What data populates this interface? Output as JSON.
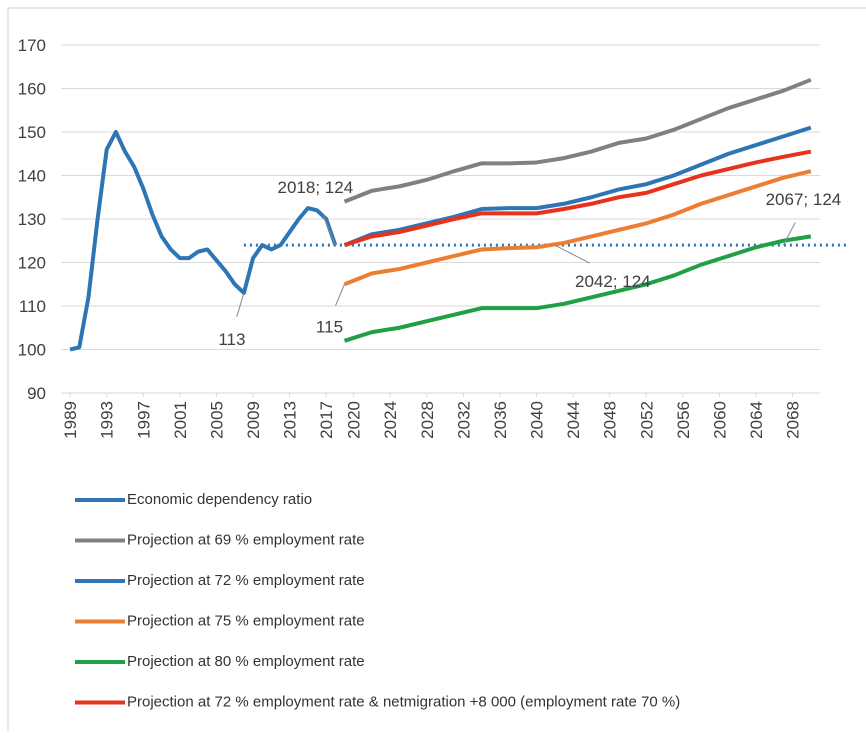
{
  "chart_data": {
    "type": "line",
    "xlim": [
      1988,
      2071
    ],
    "ylim": [
      90,
      170
    ],
    "yticks": [
      90,
      100,
      110,
      120,
      130,
      140,
      150,
      160,
      170
    ],
    "xticks": [
      1989,
      1993,
      1997,
      2001,
      2005,
      2009,
      2013,
      2017,
      2020,
      2024,
      2028,
      2032,
      2036,
      2040,
      2044,
      2048,
      2052,
      2056,
      2060,
      2064,
      2068
    ],
    "grid": true,
    "series": [
      {
        "name": "Economic dependency ratio",
        "color": "#2e75b6",
        "x": [
          1989,
          1990,
          1991,
          1992,
          1993,
          1994,
          1995,
          1996,
          1997,
          1998,
          1999,
          2000,
          2001,
          2002,
          2003,
          2004,
          2005,
          2006,
          2007,
          2008,
          2009,
          2010,
          2011,
          2012,
          2013,
          2014,
          2015,
          2016,
          2017,
          2018
        ],
        "values": [
          100,
          100.5,
          112,
          130,
          146,
          150,
          145.5,
          142,
          137,
          131,
          126,
          123,
          121,
          121,
          122.5,
          123,
          120.5,
          118,
          115,
          113,
          121,
          124,
          123,
          124,
          127,
          130,
          132.5,
          132,
          130,
          124
        ]
      },
      {
        "name": "Projection at 69 % employment rate",
        "color": "#808080",
        "x": [
          2019,
          2022,
          2025,
          2028,
          2031,
          2034,
          2037,
          2040,
          2043,
          2046,
          2049,
          2052,
          2055,
          2058,
          2061,
          2064,
          2067,
          2070
        ],
        "values": [
          134,
          136.5,
          137.5,
          139,
          141,
          142.8,
          142.8,
          143,
          144,
          145.5,
          147.5,
          148.5,
          150.5,
          153,
          155.5,
          157.5,
          159.5,
          162
        ]
      },
      {
        "name": "Projection at 72 % employment rate",
        "color": "#2e75b6",
        "x": [
          2019,
          2022,
          2025,
          2028,
          2031,
          2034,
          2037,
          2040,
          2043,
          2046,
          2049,
          2052,
          2055,
          2058,
          2061,
          2064,
          2067,
          2070
        ],
        "values": [
          124,
          126.5,
          127.5,
          129,
          130.5,
          132.3,
          132.5,
          132.5,
          133.5,
          135,
          136.8,
          138,
          140,
          142.5,
          145,
          147,
          149,
          151
        ]
      },
      {
        "name": "Projection at 75 % employment rate",
        "color": "#ed7d31",
        "x": [
          2019,
          2022,
          2025,
          2028,
          2031,
          2034,
          2037,
          2040,
          2043,
          2046,
          2049,
          2052,
          2055,
          2058,
          2061,
          2064,
          2067,
          2070
        ],
        "values": [
          115,
          117.5,
          118.5,
          120,
          121.5,
          123,
          123.3,
          123.5,
          124.5,
          126,
          127.5,
          129,
          131,
          133.5,
          135.5,
          137.5,
          139.5,
          141
        ]
      },
      {
        "name": "Projection at 80 % employment rate",
        "color": "#1fa045",
        "x": [
          2019,
          2022,
          2025,
          2028,
          2031,
          2034,
          2037,
          2040,
          2043,
          2046,
          2049,
          2052,
          2055,
          2058,
          2061,
          2064,
          2067,
          2070
        ],
        "values": [
          102,
          104,
          105,
          106.5,
          108,
          109.5,
          109.5,
          109.5,
          110.5,
          112,
          113.5,
          115,
          117,
          119.5,
          121.5,
          123.5,
          125,
          126
        ]
      },
      {
        "name": "Projection at 72 % employment rate & netmigration +8 000 (employment rate 70 %)",
        "color": "#e8321c",
        "x": [
          2019,
          2022,
          2025,
          2028,
          2031,
          2034,
          2037,
          2040,
          2043,
          2046,
          2049,
          2052,
          2055,
          2058,
          2061,
          2064,
          2067,
          2070
        ],
        "values": [
          124,
          126,
          127,
          128.5,
          130,
          131.3,
          131.3,
          131.3,
          132.3,
          133.5,
          135,
          136,
          138,
          140,
          141.5,
          143,
          144.3,
          145.5
        ]
      }
    ],
    "reference_line": {
      "value": 124,
      "x": [
        2008,
        2074
      ],
      "color": "#2e75b6"
    },
    "annotations": [
      {
        "text": "2018; 124",
        "x": 2018,
        "y": 124
      },
      {
        "text": "113",
        "x": 2008,
        "y": 113
      },
      {
        "text": "115",
        "x": 2019,
        "y": 115
      },
      {
        "text": "2042; 124",
        "x": 2042,
        "y": 124
      },
      {
        "text": "2067; 124",
        "x": 2067,
        "y": 124
      }
    ]
  }
}
